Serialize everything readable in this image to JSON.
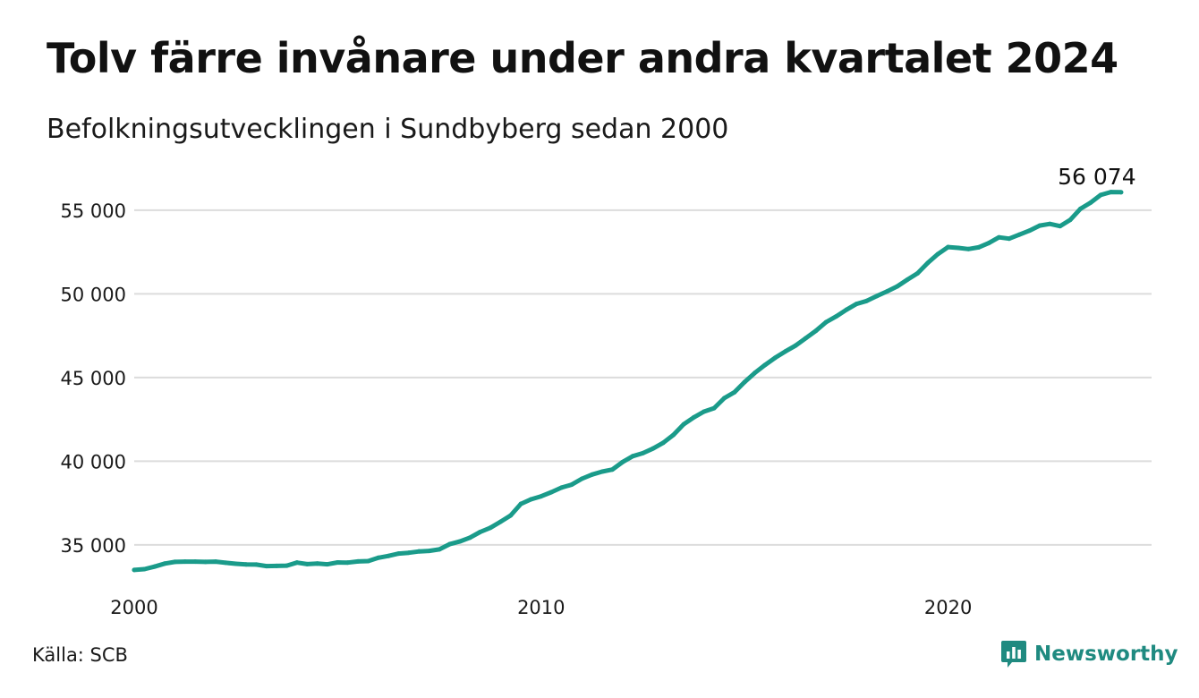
{
  "header": {
    "title": "Tolv färre invånare under andra kvartalet 2024",
    "subtitle": "Befolkningsutvecklingen i Sundbyberg sedan 2000"
  },
  "footer": {
    "source": "Källa: SCB",
    "brand": "Newsworthy"
  },
  "colors": {
    "line": "#1a9b8a",
    "grid": "#dcdcdc",
    "brand": "#1f8a80"
  },
  "chart_data": {
    "type": "line",
    "title": "Tolv färre invånare under andra kvartalet 2024",
    "subtitle": "Befolkningsutvecklingen i Sundbyberg sedan 2000",
    "xlabel": "",
    "ylabel": "",
    "xlim": [
      2000,
      2025
    ],
    "ylim": [
      32800,
      56600
    ],
    "x_ticks": [
      2000,
      2010,
      2020
    ],
    "x_tick_labels": [
      "2000",
      "2010",
      "2020"
    ],
    "y_ticks": [
      35000,
      40000,
      45000,
      50000,
      55000
    ],
    "y_tick_labels": [
      "35 000",
      "40 000",
      "45 000",
      "50 000",
      "55 000"
    ],
    "grid": true,
    "last_value_label": "56 074",
    "series": [
      {
        "x": [
          2000.0,
          2000.25,
          2000.5,
          2000.75,
          2001.0,
          2001.25,
          2001.5,
          2001.75,
          2002.0,
          2002.25,
          2002.5,
          2002.75,
          2003.0,
          2003.25,
          2003.5,
          2003.75,
          2004.0,
          2004.25,
          2004.5,
          2004.75,
          2005.0,
          2005.25,
          2005.5,
          2005.75,
          2006.0,
          2006.25,
          2006.5,
          2006.75,
          2007.0,
          2007.25,
          2007.5,
          2007.75,
          2008.0,
          2008.25,
          2008.5,
          2008.75,
          2009.0,
          2009.25,
          2009.5,
          2009.75,
          2010.0,
          2010.25,
          2010.5,
          2010.75,
          2011.0,
          2011.25,
          2011.5,
          2011.75,
          2012.0,
          2012.25,
          2012.5,
          2012.75,
          2013.0,
          2013.25,
          2013.5,
          2013.75,
          2014.0,
          2014.25,
          2014.5,
          2014.75,
          2015.0,
          2015.25,
          2015.5,
          2015.75,
          2016.0,
          2016.25,
          2016.5,
          2016.75,
          2017.0,
          2017.25,
          2017.5,
          2017.75,
          2018.0,
          2018.25,
          2018.5,
          2018.75,
          2019.0,
          2019.25,
          2019.5,
          2019.75,
          2020.0,
          2020.25,
          2020.5,
          2020.75,
          2021.0,
          2021.25,
          2021.5,
          2021.75,
          2022.0,
          2022.25,
          2022.5,
          2022.75,
          2023.0,
          2023.25,
          2023.5,
          2023.75,
          2024.0,
          2024.25
        ],
        "values": [
          33500,
          33550,
          33700,
          33880,
          33980,
          34000,
          34000,
          33980,
          34000,
          33930,
          33870,
          33830,
          33820,
          33730,
          33740,
          33760,
          33940,
          33850,
          33880,
          33840,
          33950,
          33940,
          34010,
          34030,
          34230,
          34340,
          34480,
          34530,
          34610,
          34640,
          34730,
          35040,
          35200,
          35430,
          35770,
          36020,
          36380,
          36760,
          37450,
          37720,
          37900,
          38150,
          38420,
          38600,
          38950,
          39200,
          39380,
          39500,
          39950,
          40300,
          40480,
          40760,
          41100,
          41570,
          42200,
          42620,
          42960,
          43170,
          43770,
          44120,
          44730,
          45280,
          45750,
          46180,
          46560,
          46910,
          47350,
          47790,
          48310,
          48650,
          49050,
          49400,
          49580,
          49870,
          50150,
          50450,
          50850,
          51230,
          51850,
          52380,
          52800,
          52750,
          52680,
          52780,
          53040,
          53380,
          53300,
          53540,
          53780,
          54080,
          54180,
          54050,
          54420,
          55080,
          55450,
          55910,
          56086,
          56074
        ]
      }
    ]
  }
}
